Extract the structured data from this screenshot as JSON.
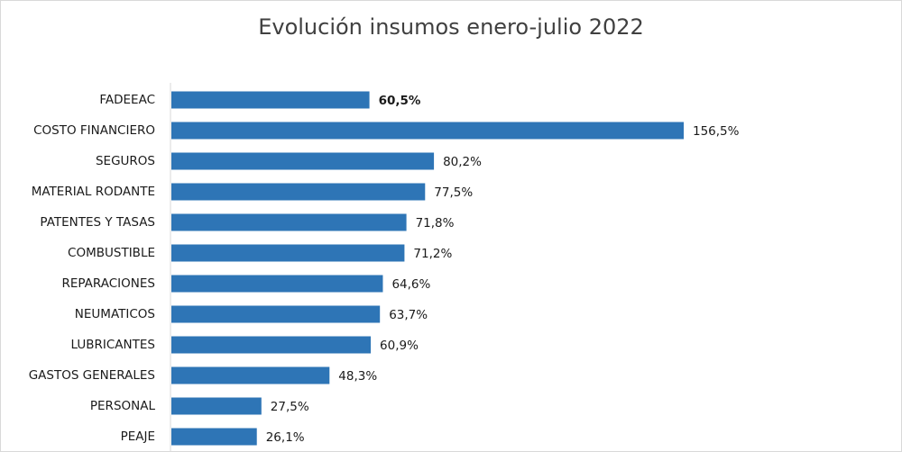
{
  "chart_data": {
    "type": "bar",
    "orientation": "horizontal",
    "title": "Evolución insumos enero-julio 2022",
    "categories": [
      "FADEEAC",
      "COSTO FINANCIERO",
      "SEGUROS",
      "MATERIAL RODANTE",
      "PATENTES Y TASAS",
      "COMBUSTIBLE",
      "REPARACIONES",
      "NEUMATICOS",
      "LUBRICANTES",
      "GASTOS GENERALES",
      "PERSONAL",
      "PEAJE"
    ],
    "values": [
      60.5,
      156.5,
      80.2,
      77.5,
      71.8,
      71.2,
      64.6,
      63.7,
      60.9,
      48.3,
      27.5,
      26.1
    ],
    "value_labels": [
      "60,5%",
      "156,5%",
      "80,2%",
      "77,5%",
      "71,8%",
      "71,2%",
      "64,6%",
      "63,7%",
      "60,9%",
      "48,3%",
      "27,5%",
      "26,1%"
    ],
    "bold_labels": [
      0
    ],
    "bar_color": "#2e75b6",
    "xlim": [
      0,
      160
    ],
    "grid": false,
    "legend": "none"
  }
}
